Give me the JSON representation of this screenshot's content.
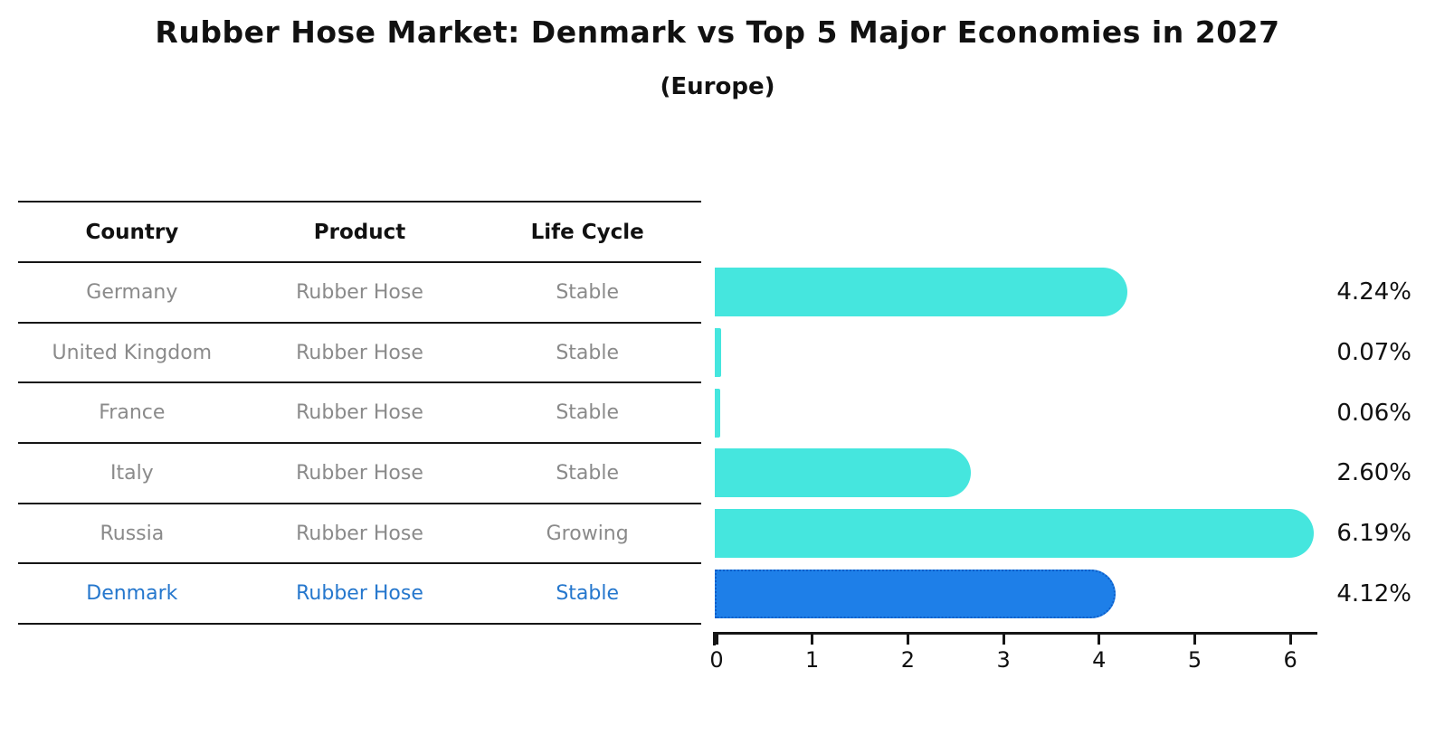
{
  "title": "Rubber Hose Market: Denmark vs Top 5 Major Economies in 2027",
  "subtitle": "(Europe)",
  "table": {
    "headers": [
      "Country",
      "Product",
      "Life Cycle"
    ],
    "rows": [
      {
        "country": "Germany",
        "product": "Rubber Hose",
        "life_cycle": "Stable",
        "highlight": false
      },
      {
        "country": "United Kingdom",
        "product": "Rubber Hose",
        "life_cycle": "Stable",
        "highlight": false
      },
      {
        "country": "France",
        "product": "Rubber Hose",
        "life_cycle": "Stable",
        "highlight": false
      },
      {
        "country": "Italy",
        "product": "Rubber Hose",
        "life_cycle": "Stable",
        "highlight": false
      },
      {
        "country": "Russia",
        "product": "Rubber Hose",
        "life_cycle": "Growing",
        "highlight": false
      },
      {
        "country": "Denmark",
        "product": "Rubber Hose",
        "life_cycle": "Stable",
        "highlight": true
      }
    ]
  },
  "chart_data": {
    "type": "bar",
    "orientation": "horizontal",
    "title": "Rubber Hose Market: Denmark vs Top 5 Major Economies in 2027",
    "subtitle": "(Europe)",
    "categories": [
      "Germany",
      "United Kingdom",
      "France",
      "Italy",
      "Russia",
      "Denmark"
    ],
    "values": [
      4.24,
      0.07,
      0.06,
      2.6,
      6.19,
      4.12
    ],
    "value_labels": [
      "4.24%",
      "0.07%",
      "0.06%",
      "2.60%",
      "6.19%",
      "4.12%"
    ],
    "xlim": [
      0,
      6.6
    ],
    "x_ticks": [
      "0",
      "1",
      "2",
      "3",
      "4",
      "5",
      "6"
    ],
    "grid": false,
    "legend_position": "left-table",
    "bar_color": "#45E6DE",
    "highlight_bar_color": "#1E7FE8",
    "highlight_border_color": "#0D5EC9",
    "highlight_text_color": "#2577CD",
    "highlight_index": 5
  },
  "colors": {
    "background": "#FFFFFF",
    "text": "#111111",
    "muted_text": "#8A8A8A",
    "line": "#161616"
  }
}
